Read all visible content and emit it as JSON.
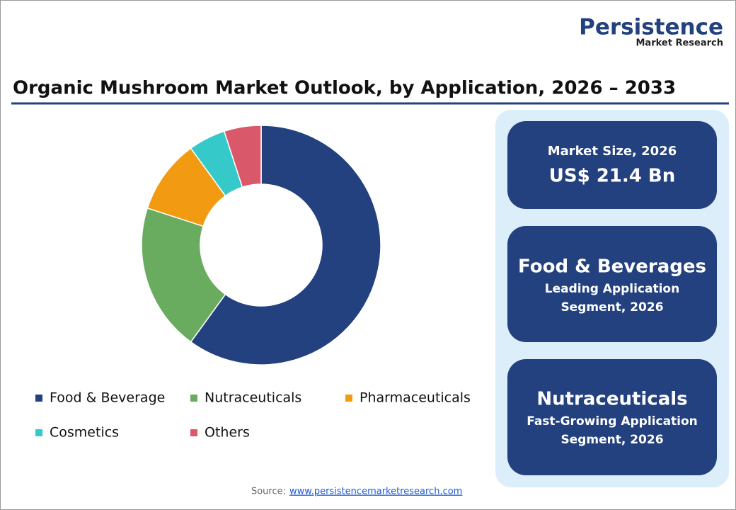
{
  "brand": {
    "name": "Persistence",
    "tagline": "Market Research"
  },
  "chart_data": {
    "type": "pie",
    "title": "Organic Mushroom Market Outlook, by Application, 2026 – 2033",
    "categories": [
      "Food & Beverage",
      "Nutraceuticals",
      "Pharmaceuticals",
      "Cosmetics",
      "Others"
    ],
    "values": [
      60,
      20,
      10,
      5,
      5
    ],
    "colors": [
      "#24417f",
      "#6aac5f",
      "#f29b12",
      "#35c9c9",
      "#d9596a"
    ]
  },
  "cards": [
    {
      "label": "Market Size, 2026",
      "value": "US$ 21.4 Bn"
    },
    {
      "title": "Food & Beverages",
      "lines": [
        "Leading Application",
        "Segment, 2026"
      ]
    },
    {
      "title": "Nutraceuticals",
      "lines": [
        "Fast-Growing Application",
        "Segment, 2026"
      ]
    }
  ],
  "source": {
    "label": "Source:",
    "url": "www.persistencemarketresearch.com"
  }
}
